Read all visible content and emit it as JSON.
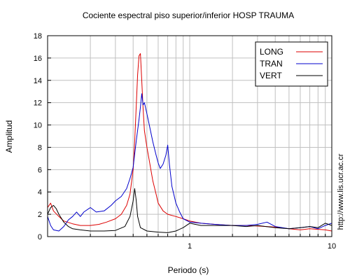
{
  "chart_data": {
    "type": "line",
    "title": "Cociente espectral piso superior/inferior  HOSP TRAUMA",
    "xlabel": "Periodo (s)",
    "ylabel": "Amplitud",
    "watermark": "http://www.lis.ucr.ac.cr",
    "x_scale": "log",
    "xlim": [
      0.1,
      10
    ],
    "ylim": [
      0,
      18
    ],
    "x_tick_labels": [
      {
        "value": 1,
        "label": "1"
      },
      {
        "value": 10,
        "label": "10"
      }
    ],
    "y_ticks": [
      0,
      2,
      4,
      6,
      8,
      10,
      12,
      14,
      16,
      18
    ],
    "grid": true,
    "legend_position": "top-right",
    "series": [
      {
        "name": "LONG",
        "color": "#dd0000",
        "points": [
          [
            0.1,
            2.6
          ],
          [
            0.105,
            3.0
          ],
          [
            0.11,
            2.3
          ],
          [
            0.12,
            1.8
          ],
          [
            0.13,
            1.4
          ],
          [
            0.15,
            1.15
          ],
          [
            0.17,
            1.0
          ],
          [
            0.2,
            1.0
          ],
          [
            0.23,
            1.1
          ],
          [
            0.26,
            1.3
          ],
          [
            0.3,
            1.6
          ],
          [
            0.33,
            2.0
          ],
          [
            0.36,
            2.8
          ],
          [
            0.38,
            3.8
          ],
          [
            0.4,
            6.0
          ],
          [
            0.41,
            8.5
          ],
          [
            0.42,
            11.5
          ],
          [
            0.43,
            14.5
          ],
          [
            0.44,
            16.2
          ],
          [
            0.45,
            16.4
          ],
          [
            0.46,
            14.0
          ],
          [
            0.47,
            11.5
          ],
          [
            0.48,
            9.5
          ],
          [
            0.5,
            8.0
          ],
          [
            0.52,
            6.8
          ],
          [
            0.55,
            5.0
          ],
          [
            0.58,
            3.8
          ],
          [
            0.6,
            3.0
          ],
          [
            0.65,
            2.3
          ],
          [
            0.7,
            2.0
          ],
          [
            0.8,
            1.8
          ],
          [
            0.9,
            1.6
          ],
          [
            1.0,
            1.4
          ],
          [
            1.2,
            1.2
          ],
          [
            1.5,
            1.1
          ],
          [
            2,
            1.0
          ],
          [
            2.5,
            1.0
          ],
          [
            3,
            0.95
          ],
          [
            4,
            0.85
          ],
          [
            5,
            0.7
          ],
          [
            6,
            0.6
          ],
          [
            7,
            0.7
          ],
          [
            8,
            0.65
          ],
          [
            9,
            0.6
          ],
          [
            10,
            0.5
          ]
        ]
      },
      {
        "name": "TRAN",
        "color": "#0000cc",
        "points": [
          [
            0.1,
            1.8
          ],
          [
            0.105,
            1.0
          ],
          [
            0.11,
            0.6
          ],
          [
            0.12,
            0.5
          ],
          [
            0.13,
            0.9
          ],
          [
            0.14,
            1.5
          ],
          [
            0.15,
            1.8
          ],
          [
            0.16,
            2.2
          ],
          [
            0.17,
            1.8
          ],
          [
            0.18,
            2.2
          ],
          [
            0.2,
            2.6
          ],
          [
            0.22,
            2.2
          ],
          [
            0.25,
            2.3
          ],
          [
            0.28,
            2.8
          ],
          [
            0.3,
            3.2
          ],
          [
            0.33,
            3.6
          ],
          [
            0.36,
            4.3
          ],
          [
            0.38,
            5.2
          ],
          [
            0.4,
            6.2
          ],
          [
            0.42,
            8.5
          ],
          [
            0.44,
            10.5
          ],
          [
            0.45,
            11.6
          ],
          [
            0.46,
            12.8
          ],
          [
            0.47,
            11.8
          ],
          [
            0.48,
            12.0
          ],
          [
            0.5,
            11.0
          ],
          [
            0.52,
            10.0
          ],
          [
            0.55,
            8.5
          ],
          [
            0.58,
            7.3
          ],
          [
            0.6,
            6.6
          ],
          [
            0.62,
            6.1
          ],
          [
            0.65,
            6.5
          ],
          [
            0.68,
            7.3
          ],
          [
            0.7,
            8.2
          ],
          [
            0.72,
            6.5
          ],
          [
            0.75,
            4.5
          ],
          [
            0.8,
            3.0
          ],
          [
            0.85,
            2.2
          ],
          [
            0.9,
            1.6
          ],
          [
            1.0,
            1.3
          ],
          [
            1.2,
            1.2
          ],
          [
            1.5,
            1.1
          ],
          [
            2,
            1.0
          ],
          [
            2.5,
            1.0
          ],
          [
            3,
            1.1
          ],
          [
            3.5,
            1.3
          ],
          [
            4,
            0.9
          ],
          [
            5,
            0.7
          ],
          [
            6,
            0.8
          ],
          [
            7,
            0.9
          ],
          [
            8,
            0.7
          ],
          [
            9,
            1.0
          ],
          [
            10,
            1.2
          ]
        ]
      },
      {
        "name": "VERT",
        "color": "#000000",
        "points": [
          [
            0.1,
            2.0
          ],
          [
            0.105,
            2.6
          ],
          [
            0.11,
            2.8
          ],
          [
            0.115,
            2.5
          ],
          [
            0.12,
            2.0
          ],
          [
            0.13,
            1.3
          ],
          [
            0.14,
            0.9
          ],
          [
            0.15,
            0.7
          ],
          [
            0.17,
            0.6
          ],
          [
            0.2,
            0.5
          ],
          [
            0.25,
            0.5
          ],
          [
            0.3,
            0.55
          ],
          [
            0.35,
            0.9
          ],
          [
            0.38,
            1.8
          ],
          [
            0.4,
            3.2
          ],
          [
            0.41,
            4.3
          ],
          [
            0.42,
            3.3
          ],
          [
            0.43,
            1.8
          ],
          [
            0.45,
            0.8
          ],
          [
            0.5,
            0.5
          ],
          [
            0.6,
            0.4
          ],
          [
            0.7,
            0.35
          ],
          [
            0.8,
            0.5
          ],
          [
            0.9,
            0.8
          ],
          [
            1.0,
            1.2
          ],
          [
            1.2,
            1.0
          ],
          [
            1.5,
            1.0
          ],
          [
            2,
            1.0
          ],
          [
            2.5,
            0.9
          ],
          [
            3,
            1.0
          ],
          [
            4,
            0.8
          ],
          [
            5,
            0.7
          ],
          [
            6,
            0.8
          ],
          [
            7,
            0.9
          ],
          [
            8,
            0.8
          ],
          [
            9,
            1.2
          ],
          [
            10,
            1.0
          ]
        ]
      }
    ]
  }
}
